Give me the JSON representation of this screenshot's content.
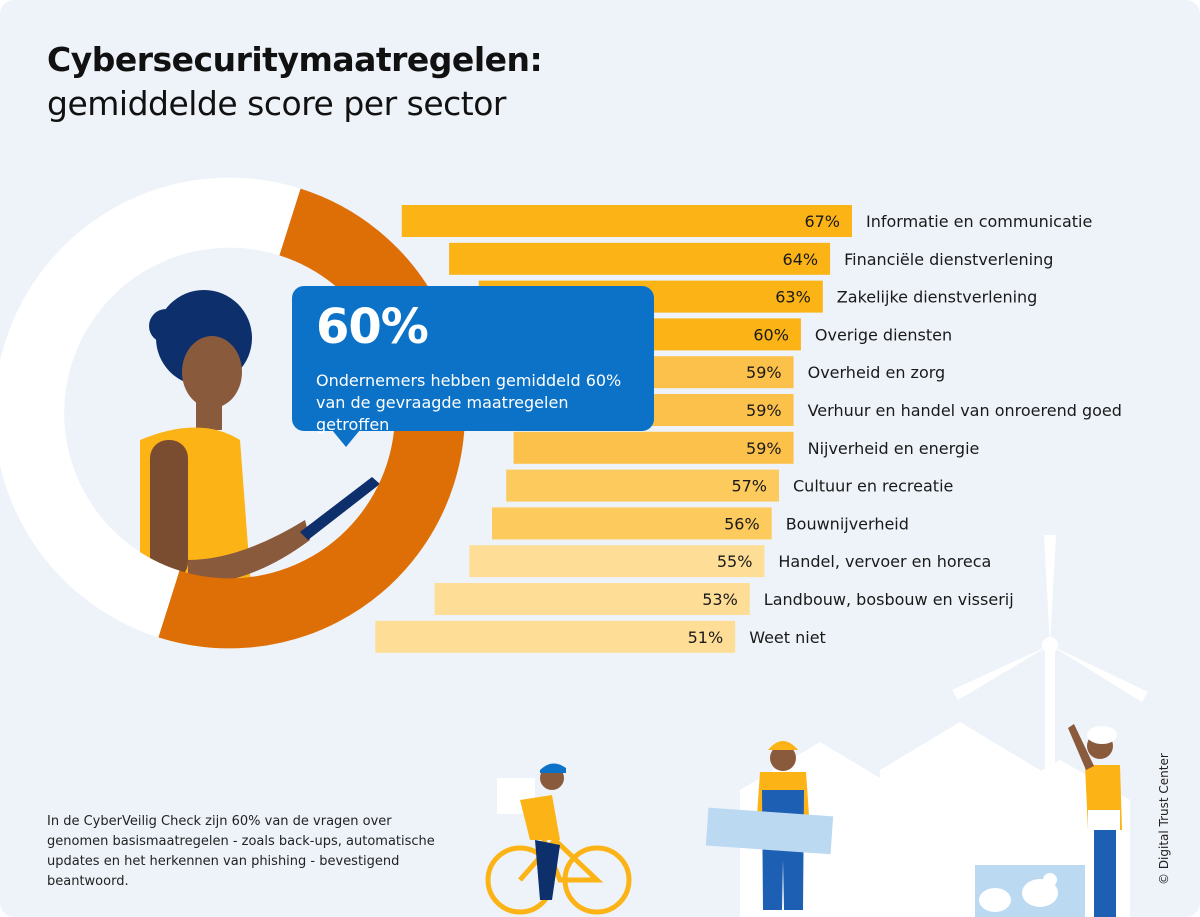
{
  "header": {
    "title": "Cybersecuritymaatregelen:",
    "subtitle": "gemiddelde score per sector"
  },
  "callout": {
    "value": "60%",
    "text": "Ondernemers hebben gemiddeld 60% van de gevraagde maatregelen getroffen"
  },
  "footnote": "In de CyberVeilig Check zijn 60% van de vragen over genomen basismaatregelen - zoals back-ups, automatische updates en het herkennen van phishing - bevestigend beantwoord.",
  "credit": "© Digital Trust Center",
  "colors": {
    "background": "#eef3fa",
    "ring": "#de6f06",
    "ring_track": "#ffffff",
    "callout": "#0b72c8",
    "bars": [
      "#fbb316",
      "#fbb316",
      "#fbb316",
      "#fbb316",
      "#fcc14b",
      "#fcc14b",
      "#fcc14b",
      "#fdca5e",
      "#fdca5e",
      "#fede97",
      "#fede97",
      "#fede97"
    ]
  },
  "illustrations": [
    "woman-with-tablet",
    "cyclist",
    "construction-worker",
    "chef",
    "wind-turbine",
    "chickens",
    "houses"
  ],
  "chart_data": {
    "type": "bar",
    "orientation": "horizontal",
    "categories": [
      "Informatie en communicatie",
      "Financiële dienstverlening",
      "Zakelijke dienstverlening",
      "Overige diensten",
      "Overheid en zorg",
      "Verhuur en handel van onroerend goed",
      "Nijverheid en energie",
      "Cultuur en recreatie",
      "Bouwnijverheid",
      "Handel, vervoer en horeca",
      "Landbouw, bosbouw en visserij",
      "Weet niet"
    ],
    "values": [
      67,
      64,
      63,
      60,
      59,
      59,
      59,
      57,
      56,
      55,
      53,
      51
    ],
    "value_labels": [
      "67%",
      "64%",
      "63%",
      "60%",
      "59%",
      "59%",
      "59%",
      "57%",
      "56%",
      "55%",
      "53%",
      "51%"
    ],
    "unit": "%",
    "average": 60,
    "title": "Cybersecuritymaatregelen:",
    "subtitle": "gemiddelde score per sector",
    "grid": false,
    "legend": "none"
  }
}
